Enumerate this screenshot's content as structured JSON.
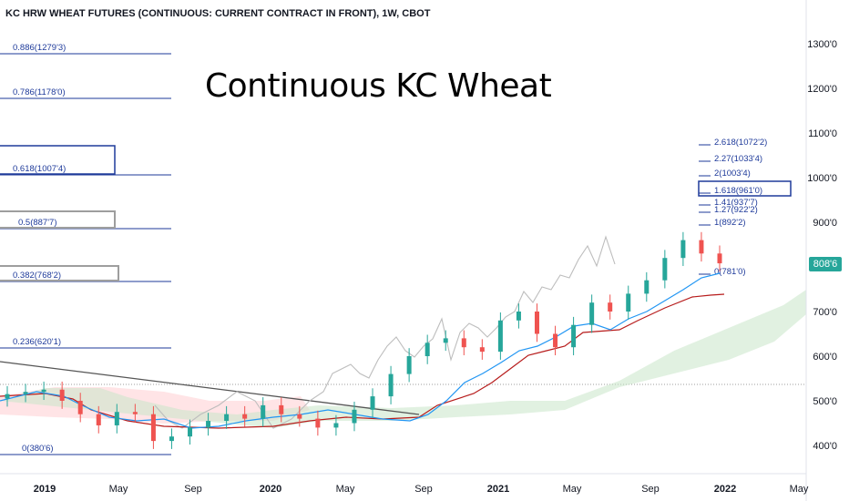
{
  "header": "KC HRW WHEAT FUTURES (CONTINUOUS: CURRENT CONTRACT IN FRONT), 1W, CBOT",
  "annotation_title": "Continuous KC Wheat",
  "last_price_label": "808'6",
  "colors": {
    "fib_line": "#1e3a9a",
    "candle_up": "#26a69a",
    "candle_down": "#ef5350",
    "conversion_line": "#2196f3",
    "base_line": "#b71c1c",
    "lagging_line": "#bdbdbd",
    "trendline": "#555555",
    "cloud_bull": "#c8e6c9",
    "cloud_bear": "#ffcdd2"
  },
  "chart_data": {
    "type": "candlestick",
    "title": "KC HRW WHEAT FUTURES (CONTINUOUS: CURRENT CONTRACT IN FRONT), 1W, CBOT",
    "interval": "1W",
    "exchange": "CBOT",
    "y_axis": {
      "ticks": [
        400,
        500,
        600,
        700,
        800,
        900,
        1000,
        1100,
        1200,
        1300
      ],
      "tick_labels": [
        "400'0",
        "500'0",
        "600'0",
        "700'0",
        "800'0",
        "900'0",
        "1000'0",
        "1100'0",
        "1200'0",
        "1300'0"
      ],
      "ylim": [
        360,
        1400
      ]
    },
    "x_axis": {
      "tick_labels": [
        "2019",
        "May",
        "Sep",
        "2020",
        "May",
        "Sep",
        "2021",
        "May",
        "Sep",
        "2022",
        "May"
      ]
    },
    "fib_retracement": {
      "levels": [
        {
          "ratio": "0",
          "price": "380'6",
          "label": "0(380'6)"
        },
        {
          "ratio": "0.236",
          "price": "620'1",
          "label": "0.236(620'1)"
        },
        {
          "ratio": "0.382",
          "price": "768'2",
          "label": "0.382(768'2)"
        },
        {
          "ratio": "0.5",
          "price": "887'7",
          "label": "0.5(887'7)"
        },
        {
          "ratio": "0.618",
          "price": "1007'4",
          "label": "0.618(1007'4)"
        },
        {
          "ratio": "0.786",
          "price": "1178'0",
          "label": "0.786(1178'0)"
        },
        {
          "ratio": "0.886",
          "price": "1279'3",
          "label": "0.886(1279'3)"
        }
      ]
    },
    "fib_extension": {
      "levels": [
        {
          "ratio": "0",
          "label": "0(781'0)"
        },
        {
          "ratio": "1",
          "label": "1(892'2)"
        },
        {
          "ratio": "1.27",
          "label": "1.27(922'2)"
        },
        {
          "ratio": "1.41",
          "label": "1.41(937'7)"
        },
        {
          "ratio": "1.618",
          "label": "1.618(961'0)"
        },
        {
          "ratio": "2",
          "label": "2(1003'4)"
        },
        {
          "ratio": "2.27",
          "label": "2.27(1033'4)"
        },
        {
          "ratio": "2.618",
          "label": "2.618(1072'2)"
        }
      ]
    },
    "last_price": 808.75,
    "series": [
      {
        "kind": "candles",
        "x": [
          0.002,
          0.024,
          0.047,
          0.069,
          0.091,
          0.114,
          0.138,
          0.163,
          0.19,
          0.22,
          0.25,
          0.27,
          0.3,
          0.32,
          0.34,
          0.36,
          0.38,
          0.4,
          0.43,
          0.46,
          0.475,
          0.5,
          0.52,
          0.54,
          0.56,
          0.58,
          0.6,
          0.62,
          0.64,
          0.66,
          0.68,
          0.7,
          0.72,
          0.74,
          0.76,
          0.78,
          0.8,
          0.815,
          0.83,
          0.845
        ],
        "note": "approximate weekly closes"
      },
      {
        "kind": "close",
        "values": [
          515,
          520,
          525,
          500,
          470,
          445,
          475,
          470,
          410,
          420,
          440,
          455,
          470,
          460,
          490,
          470,
          460,
          440,
          450,
          480,
          510,
          560,
          600,
          630,
          640,
          620,
          610,
          680,
          700,
          650,
          620,
          670,
          720,
          700,
          740,
          770,
          820,
          860,
          830,
          808
        ]
      }
    ]
  }
}
